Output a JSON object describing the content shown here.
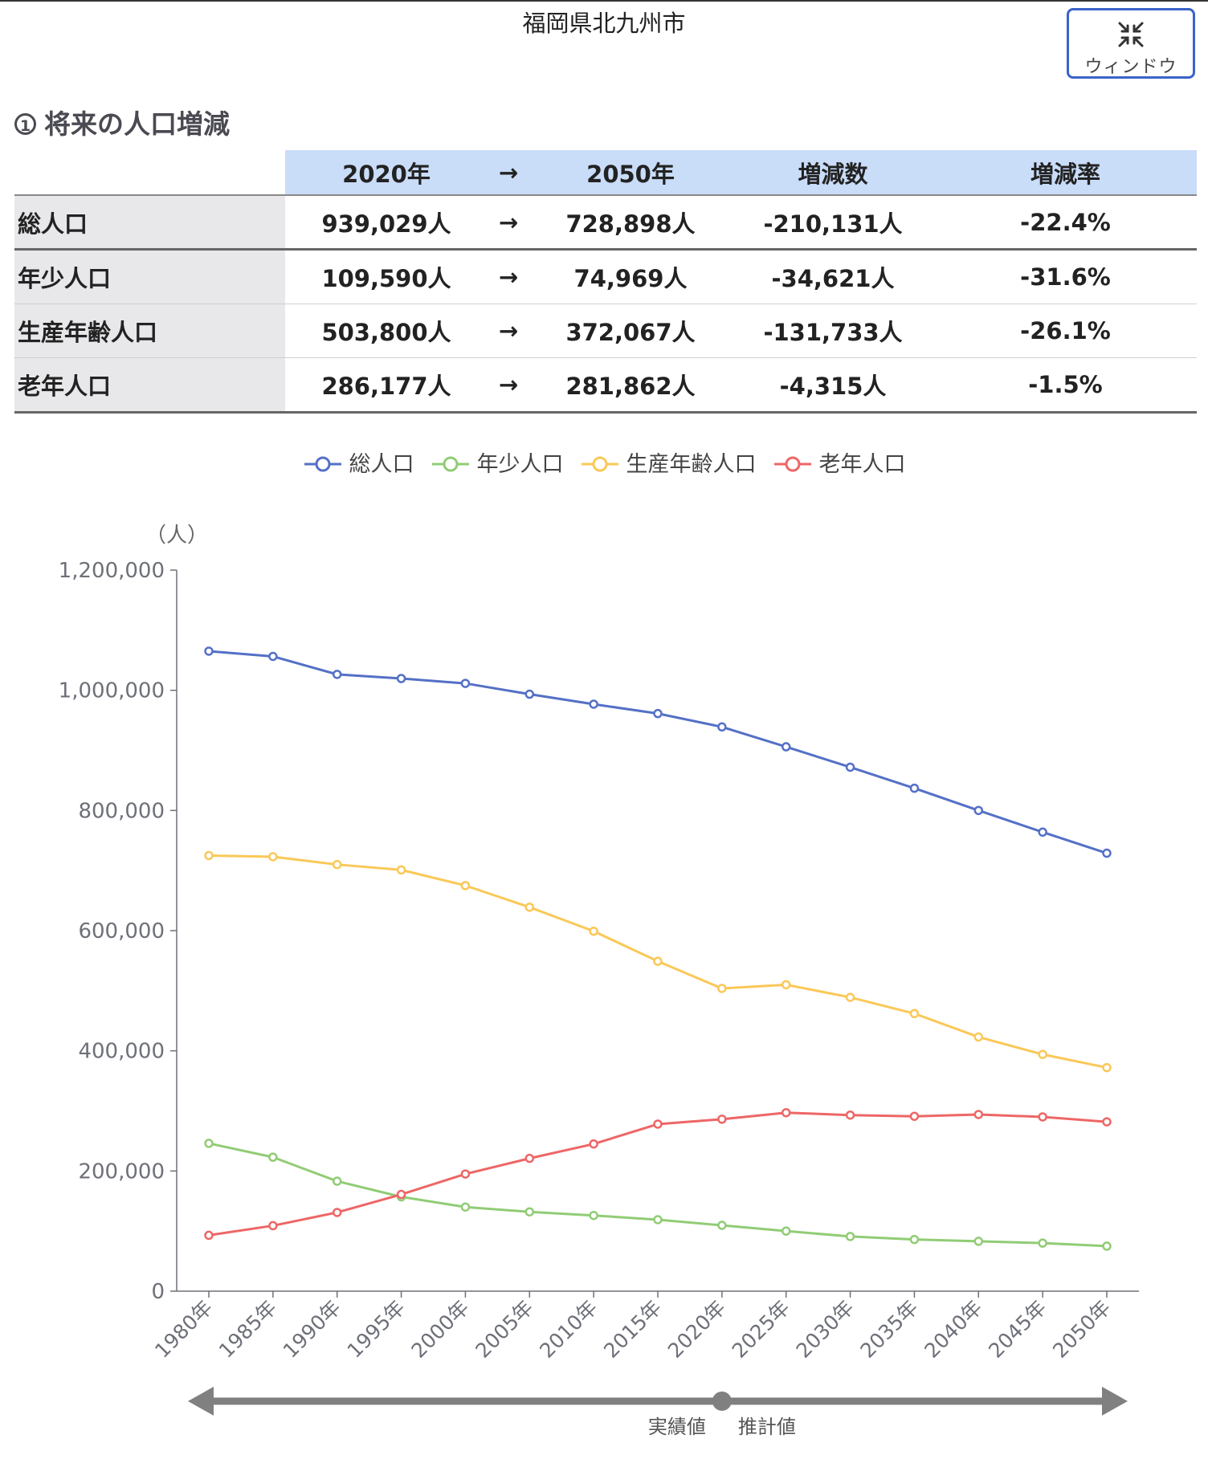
{
  "page_title": "福岡県北九州市",
  "window_button": {
    "label": "ウィンドウ"
  },
  "section": {
    "number": "1",
    "title": "将来の人口増減"
  },
  "summary_table": {
    "headers": [
      "2020年",
      "→",
      "2050年",
      "増減数",
      "増減率"
    ],
    "rows": [
      {
        "label": "総人口",
        "v2020": "939,029人",
        "arrow": "→",
        "v2050": "728,898人",
        "diff": "-210,131人",
        "rate": "-22.4%"
      },
      {
        "label": "年少人口",
        "v2020": "109,590人",
        "arrow": "→",
        "v2050": "74,969人",
        "diff": "-34,621人",
        "rate": "-31.6%"
      },
      {
        "label": "生産年齢人口",
        "v2020": "503,800人",
        "arrow": "→",
        "v2050": "372,067人",
        "diff": "-131,733人",
        "rate": "-26.1%"
      },
      {
        "label": "老年人口",
        "v2020": "286,177人",
        "arrow": "→",
        "v2050": "281,862人",
        "diff": "-4,315人",
        "rate": "-1.5%"
      }
    ]
  },
  "chart_data": {
    "type": "line",
    "title": "",
    "ylabel": "（人）",
    "xlabel": "",
    "ylim": [
      0,
      1200000
    ],
    "yticks": [
      0,
      200000,
      400000,
      600000,
      800000,
      1000000,
      1200000
    ],
    "ytick_labels": [
      "0",
      "200,000",
      "400,000",
      "600,000",
      "800,000",
      "1,000,000",
      "1,200,000"
    ],
    "categories": [
      "1980年",
      "1985年",
      "1990年",
      "1995年",
      "2000年",
      "2005年",
      "2010年",
      "2015年",
      "2020年",
      "2025年",
      "2030年",
      "2035年",
      "2040年",
      "2045年",
      "2050年"
    ],
    "legend_position": "top",
    "grid": false,
    "series": [
      {
        "name": "総人口",
        "color": "#5470c6",
        "values": [
          1065084,
          1056402,
          1026455,
          1019598,
          1011471,
          993525,
          976846,
          961286,
          939029,
          906000,
          872000,
          837000,
          800000,
          764000,
          728898
        ]
      },
      {
        "name": "年少人口",
        "color": "#91cc75",
        "values": [
          246000,
          223000,
          183000,
          157000,
          140000,
          132000,
          126000,
          119000,
          109590,
          100000,
          91000,
          86000,
          83000,
          80000,
          74969
        ]
      },
      {
        "name": "生産年齢人口",
        "color": "#fac858",
        "values": [
          725000,
          723000,
          710000,
          701000,
          675000,
          639000,
          599000,
          549000,
          503800,
          510000,
          489000,
          462000,
          423000,
          394000,
          372067
        ]
      },
      {
        "name": "老年人口",
        "color": "#ee6666",
        "values": [
          93000,
          109000,
          131000,
          161000,
          195000,
          221000,
          245000,
          278000,
          286177,
          297000,
          293000,
          291000,
          294000,
          290000,
          281862
        ]
      }
    ],
    "period_bar": {
      "actual_label": "実績値",
      "estimate_label": "推計値",
      "split_category": "2020年"
    }
  }
}
